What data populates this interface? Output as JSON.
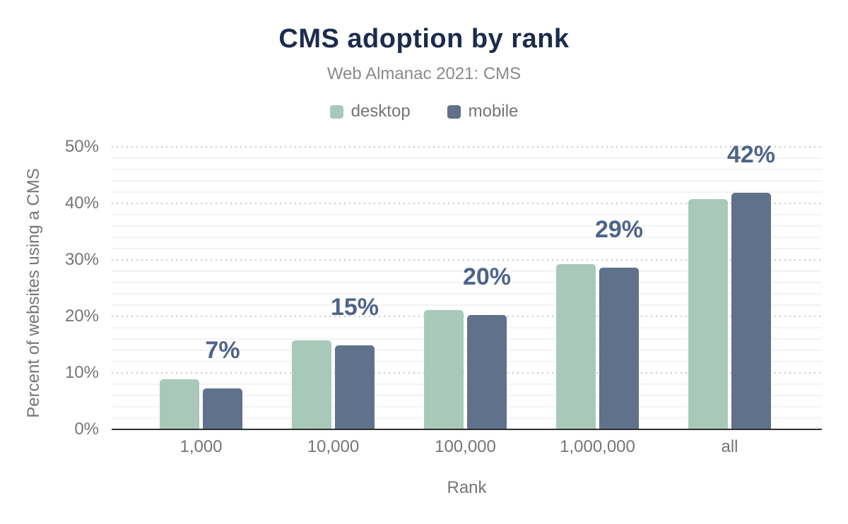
{
  "title": "CMS adoption by rank",
  "subtitle": "Web Almanac 2021: CMS",
  "chart_data": {
    "type": "bar",
    "categories": [
      "1,000",
      "10,000",
      "100,000",
      "1,000,000",
      "all"
    ],
    "series": [
      {
        "name": "desktop",
        "color": "#a8c9ba",
        "values": [
          8.9,
          15.7,
          21.1,
          29.3,
          40.7
        ]
      },
      {
        "name": "mobile",
        "color": "#60718c",
        "values": [
          7.3,
          14.9,
          20.3,
          28.6,
          41.9
        ]
      }
    ],
    "annotations": {
      "series": "mobile",
      "labels": [
        "7%",
        "15%",
        "20%",
        "29%",
        "42%"
      ]
    },
    "xlabel": "Rank",
    "ylabel": "Percent of websites using a CMS",
    "ylim": [
      0,
      50
    ],
    "yticks": [
      0,
      10,
      20,
      30,
      40,
      50
    ],
    "ytick_labels": [
      "0%",
      "10%",
      "20%",
      "30%",
      "40%",
      "50%"
    ],
    "grid": {
      "major": "dotted",
      "minor_step": 2,
      "minor": "solid-faint"
    },
    "legend_position": "top"
  },
  "colors": {
    "title": "#1b2c4d",
    "subtitle": "#8a8a8a",
    "axis_text": "#757575",
    "annotation_text": "#4e6489",
    "baseline": "#2e2e2e",
    "major_gridline": "#c9c9c9",
    "minor_gridline": "#f3f3f3",
    "background": "#ffffff"
  }
}
